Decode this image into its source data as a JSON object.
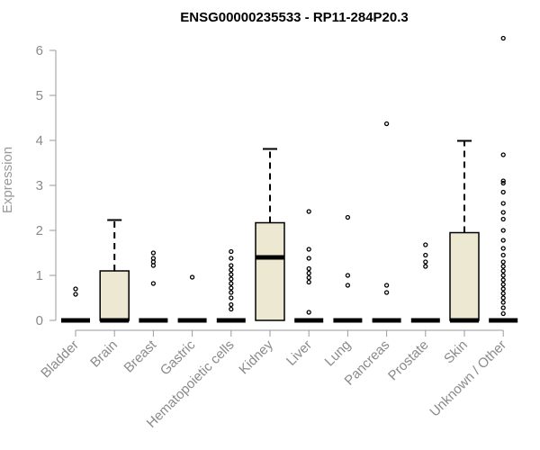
{
  "chart_data": {
    "type": "box",
    "title": "ENSG00000235533 - RP11-284P20.3",
    "xlabel": "",
    "ylabel": "Expression",
    "ylim": [
      0,
      6.25
    ],
    "yticks": [
      0,
      1,
      2,
      3,
      4,
      5,
      6
    ],
    "grid": false,
    "box_fill": "#ede8d2",
    "categories": [
      "Bladder",
      "Brain",
      "Breast",
      "Gastric",
      "Hematopoietic cells",
      "Kidney",
      "Liver",
      "Lung",
      "Pancreas",
      "Prostate",
      "Skin",
      "Unknown / Other"
    ],
    "boxes": [
      {
        "q1": 0,
        "median": 0,
        "q3": 0,
        "whisker_low": 0,
        "whisker_high": 0,
        "outliers": [
          0.58,
          0.7
        ]
      },
      {
        "q1": 0,
        "median": 0,
        "q3": 1.1,
        "whisker_low": 0,
        "whisker_high": 2.23,
        "outliers": []
      },
      {
        "q1": 0,
        "median": 0,
        "q3": 0,
        "whisker_low": 0,
        "whisker_high": 0,
        "outliers": [
          0.82,
          1.22,
          1.3,
          1.38,
          1.5
        ]
      },
      {
        "q1": 0,
        "median": 0,
        "q3": 0,
        "whisker_low": 0,
        "whisker_high": 0,
        "outliers": [
          0.96
        ]
      },
      {
        "q1": 0,
        "median": 0,
        "q3": 0,
        "whisker_low": 0,
        "whisker_high": 0,
        "outliers": [
          0.25,
          0.35,
          0.5,
          0.62,
          0.72,
          0.82,
          0.92,
          1.02,
          1.12,
          1.22,
          1.38,
          1.53
        ]
      },
      {
        "q1": 0,
        "median": 1.4,
        "q3": 2.17,
        "whisker_low": 0,
        "whisker_high": 3.81,
        "outliers": []
      },
      {
        "q1": 0,
        "median": 0,
        "q3": 0,
        "whisker_low": 0,
        "whisker_high": 0,
        "outliers": [
          0.18,
          0.85,
          0.95,
          1.05,
          1.15,
          1.38,
          1.58,
          2.42
        ]
      },
      {
        "q1": 0,
        "median": 0,
        "q3": 0,
        "whisker_low": 0,
        "whisker_high": 0,
        "outliers": [
          0.78,
          1.0,
          2.29
        ]
      },
      {
        "q1": 0,
        "median": 0,
        "q3": 0,
        "whisker_low": 0,
        "whisker_high": 0,
        "outliers": [
          0.62,
          0.78,
          4.37
        ]
      },
      {
        "q1": 0,
        "median": 0,
        "q3": 0,
        "whisker_low": 0,
        "whisker_high": 0,
        "outliers": [
          1.2,
          1.3,
          1.45,
          1.68
        ]
      },
      {
        "q1": 0,
        "median": 0,
        "q3": 1.95,
        "whisker_low": 0,
        "whisker_high": 3.99,
        "outliers": []
      },
      {
        "q1": 0,
        "median": 0,
        "q3": 0,
        "whisker_low": 0,
        "whisker_high": 0,
        "outliers": [
          0.15,
          0.28,
          0.4,
          0.5,
          0.6,
          0.7,
          0.8,
          0.9,
          1.0,
          1.1,
          1.2,
          1.3,
          1.45,
          1.6,
          1.78,
          2.0,
          2.25,
          2.4,
          2.6,
          2.85,
          3.05,
          3.1,
          3.68,
          6.27
        ]
      }
    ]
  }
}
